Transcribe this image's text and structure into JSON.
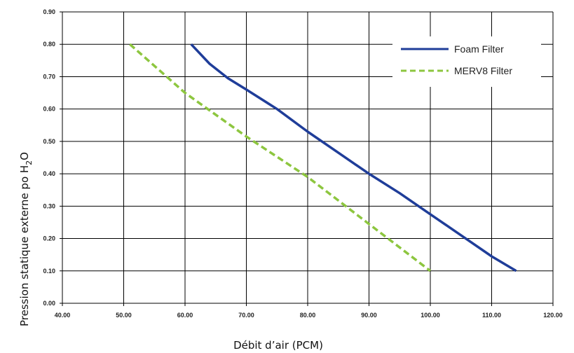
{
  "chart_data": {
    "type": "line",
    "xlabel": "Débit d’air (PCM)",
    "ylabel": "Pression statique externe po H",
    "ylabel_sub_2": "2",
    "ylabel_O": "O",
    "xlim": [
      40,
      120
    ],
    "ylim": [
      0,
      0.9
    ],
    "x_ticks": [
      "40.00",
      "50.00",
      "60.00",
      "70.00",
      "80.00",
      "90.00",
      "100.00",
      "110.00",
      "120.00"
    ],
    "y_ticks": [
      "0.00",
      "0.10",
      "0.20",
      "0.30",
      "0.40",
      "0.50",
      "0.60",
      "0.70",
      "0.80",
      "0.90"
    ],
    "grid": true,
    "legend_position": "top-right",
    "series": [
      {
        "name": "Foam Filter",
        "color": "#1f3d99",
        "style": "solid",
        "points": [
          [
            61,
            0.8
          ],
          [
            64,
            0.74
          ],
          [
            67,
            0.695
          ],
          [
            70,
            0.66
          ],
          [
            75,
            0.6
          ],
          [
            80,
            0.53
          ],
          [
            85,
            0.465
          ],
          [
            90,
            0.4
          ],
          [
            95,
            0.34
          ],
          [
            100,
            0.275
          ],
          [
            105,
            0.21
          ],
          [
            110,
            0.145
          ],
          [
            114,
            0.1
          ]
        ]
      },
      {
        "name": "MERV8 Filter",
        "color": "#8dc63f",
        "style": "dashed",
        "points": [
          [
            51,
            0.8
          ],
          [
            60,
            0.65
          ],
          [
            70,
            0.515
          ],
          [
            80,
            0.39
          ],
          [
            90,
            0.245
          ],
          [
            100,
            0.1
          ]
        ]
      }
    ]
  }
}
